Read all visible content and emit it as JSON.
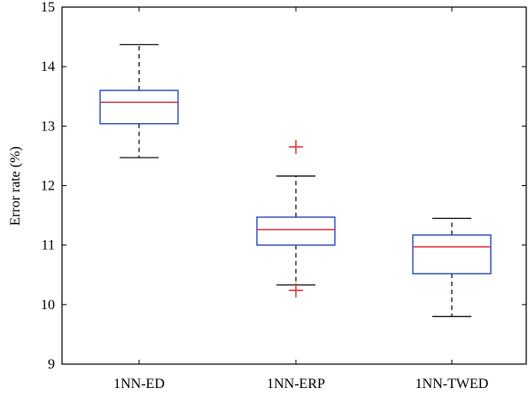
{
  "chart_data": {
    "type": "box",
    "title": "",
    "xlabel": "",
    "ylabel": "Error rate (%)",
    "ylim": [
      9,
      15
    ],
    "yticks": [
      9,
      10,
      11,
      12,
      13,
      14,
      15
    ],
    "grid": false,
    "categories": [
      "1NN-ED",
      "1NN-ERP",
      "1NN-TWED"
    ],
    "boxes": [
      {
        "category": "1NN-ED",
        "whisker_low": 12.47,
        "q1": 13.04,
        "median": 13.4,
        "q3": 13.6,
        "whisker_high": 14.37,
        "outliers": []
      },
      {
        "category": "1NN-ERP",
        "whisker_low": 10.33,
        "q1": 11.0,
        "median": 11.26,
        "q3": 11.47,
        "whisker_high": 12.16,
        "outliers": [
          12.65,
          10.24
        ]
      },
      {
        "category": "1NN-TWED",
        "whisker_low": 9.8,
        "q1": 10.52,
        "median": 10.97,
        "q3": 11.17,
        "whisker_high": 11.45,
        "outliers": []
      }
    ],
    "colors": {
      "box": "#2b4bbd",
      "median": "#e0262b",
      "outlier": "#e0262b",
      "whisker": "#000000",
      "axis": "#000000"
    }
  }
}
